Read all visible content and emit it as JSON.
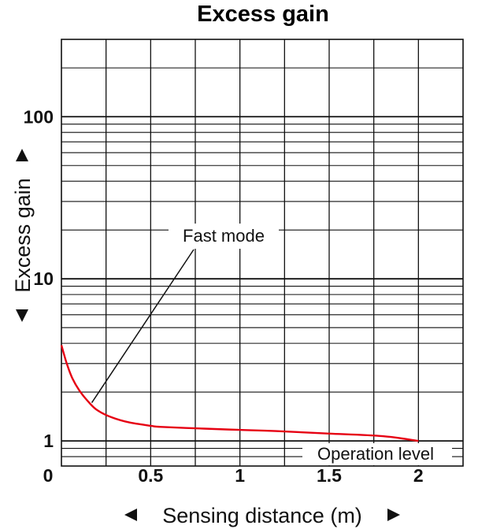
{
  "chart_data": {
    "type": "line",
    "title": "Excess gain",
    "xlabel": "Sensing distance (m)",
    "ylabel": "Excess gain",
    "x_origin_label": "0",
    "xticks": [
      {
        "value": 0.5,
        "label": "0.5"
      },
      {
        "value": 1,
        "label": "1"
      },
      {
        "value": 1.5,
        "label": "1.5"
      },
      {
        "value": 2,
        "label": "2"
      }
    ],
    "yticks": [
      {
        "value": 1,
        "label": "1"
      },
      {
        "value": 10,
        "label": "10"
      },
      {
        "value": 100,
        "label": "100"
      }
    ],
    "xlim": [
      0,
      2.25
    ],
    "ylim": [
      0.7,
      300
    ],
    "yscale": "log",
    "grid": true,
    "series": [
      {
        "name": "Fast mode",
        "color": "#e60012",
        "x": [
          0,
          0.03,
          0.06,
          0.1,
          0.15,
          0.2,
          0.28,
          0.38,
          0.5,
          0.56,
          0.8,
          1.0,
          1.2,
          1.5,
          1.8,
          2.0
        ],
        "y": [
          3.9,
          3.0,
          2.45,
          2.05,
          1.75,
          1.55,
          1.4,
          1.3,
          1.24,
          1.22,
          1.19,
          1.17,
          1.15,
          1.11,
          1.07,
          1.0
        ]
      }
    ],
    "annotations": [
      {
        "text": "Fast mode",
        "points_to_x": 0.17,
        "points_to_y": 1.72
      },
      {
        "text": "Operation level"
      }
    ]
  },
  "colors": {
    "title": "#0d4ea0",
    "grid": "#111111",
    "line": "#e60012"
  }
}
